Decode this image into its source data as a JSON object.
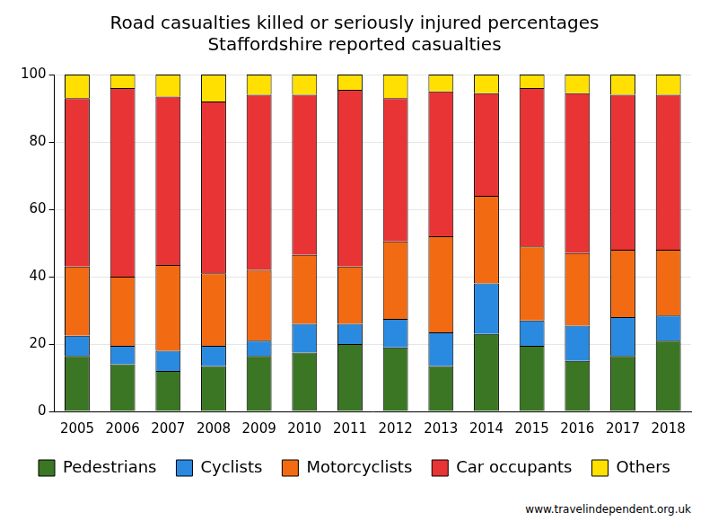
{
  "chart_data": {
    "type": "bar",
    "stacked": true,
    "title": [
      "Road casualties killed or seriously injured percentages",
      "Staffordshire reported casualties"
    ],
    "source": "www.travelindependent.org.uk",
    "categories": [
      "2005",
      "2006",
      "2007",
      "2008",
      "2009",
      "2010",
      "2011",
      "2012",
      "2013",
      "2014",
      "2015",
      "2016",
      "2017",
      "2018"
    ],
    "series": [
      {
        "name": "Pedestrians",
        "color": "#3a7623",
        "values": [
          16.5,
          14,
          12,
          13.5,
          16.5,
          17.5,
          20,
          19,
          13.5,
          23,
          19.5,
          15,
          16.5,
          21
        ]
      },
      {
        "name": "Cyclists",
        "color": "#2a8ae0",
        "values": [
          6,
          5.5,
          6,
          6,
          4.5,
          8.5,
          6,
          8.5,
          10,
          15,
          7.5,
          10.5,
          11.5,
          7.5
        ]
      },
      {
        "name": "Motorcyclists",
        "color": "#f26b12",
        "values": [
          20.5,
          20.5,
          25.5,
          21.5,
          21,
          20.5,
          17,
          23,
          28.5,
          26,
          22,
          21.5,
          20,
          19.5
        ]
      },
      {
        "name": "Car occupants",
        "color": "#e83434",
        "values": [
          50,
          56,
          50,
          51,
          52,
          47.5,
          52.5,
          42.5,
          43,
          30.5,
          47,
          47.5,
          46,
          46
        ]
      },
      {
        "name": "Others",
        "color": "#ffe000",
        "values": [
          7,
          4,
          6.5,
          8,
          6,
          6,
          4.5,
          7,
          5,
          5.5,
          4,
          5.5,
          6,
          6
        ]
      }
    ],
    "ylim": [
      0,
      100
    ],
    "yticks": [
      0,
      20,
      40,
      60,
      80,
      100
    ],
    "grid": true,
    "legend": "bottom"
  }
}
